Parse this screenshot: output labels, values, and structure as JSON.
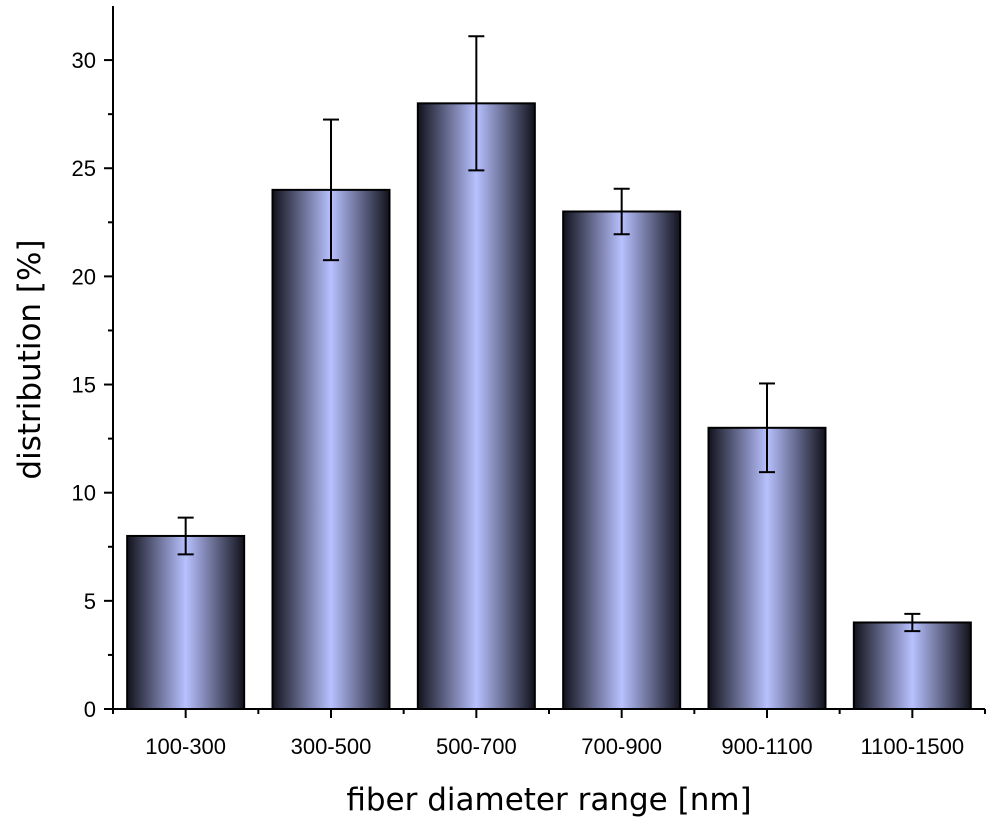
{
  "chart_data": {
    "type": "bar",
    "xlabel": "fiber diameter range [nm]",
    "ylabel": "distribution [%]",
    "categories": [
      "100-300",
      "300-500",
      "500-700",
      "700-900",
      "900-1100",
      "1100-1500"
    ],
    "values": [
      8,
      24,
      28,
      23,
      13,
      4
    ],
    "errors": [
      0.85,
      3.25,
      3.1,
      1.05,
      2.05,
      0.4
    ],
    "ylim": [
      0,
      32.5
    ],
    "yticks": [
      0,
      5,
      10,
      15,
      20,
      25,
      30
    ],
    "grid": false,
    "legend": "none",
    "bar_colors": {
      "center": "#b8c1ff",
      "edge": "#12121c"
    }
  }
}
